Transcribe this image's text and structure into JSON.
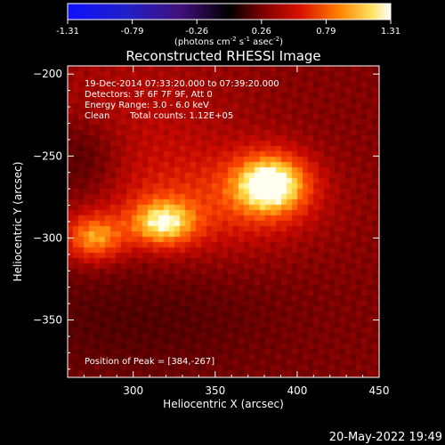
{
  "colorbar": {
    "ticks": [
      "-1.31",
      "-0.79",
      "-0.26",
      "0.26",
      "0.79",
      "1.31"
    ],
    "unit_base": "(photons cm",
    "unit_exp1": "-2",
    "unit_mid1": " s",
    "unit_exp2": "-1",
    "unit_mid2": " asec",
    "unit_exp3": "-2",
    "unit_close": ")"
  },
  "info_lines": [
    "19-Dec-2014 07:33:20.000 to 07:39:20.000",
    "Detectors: 3F 6F 7F 9F, Att 0",
    "Energy Range: 3.0 - 6.0 keV",
    "Clean",
    "Total counts: 1.12E+05"
  ],
  "peak_text": "Position of Peak = [384,-267]",
  "footer_date": "20-May-2022 19:49",
  "chart_data": {
    "type": "heatmap",
    "title": "Reconstructed RHESSI Image",
    "xlabel": "Heliocentric X (arcsec)",
    "ylabel": "Heliocentric Y (arcsec)",
    "xlim": [
      260,
      450
    ],
    "ylim": [
      -385,
      -195
    ],
    "x_ticks": [
      300,
      350,
      400,
      450
    ],
    "y_ticks": [
      -200,
      -250,
      -300,
      -350
    ],
    "x_tick_labels": [
      "300",
      "350",
      "400",
      "450"
    ],
    "y_tick_labels": [
      "−200",
      "−250",
      "−300",
      "−350"
    ],
    "colormap": "hot (black-red-orange-yellow-white)",
    "value_range": [
      -1.31,
      1.31
    ],
    "peak": [
      384,
      -267
    ],
    "sources": [
      {
        "x": 384,
        "y": -267,
        "amplitude": 1.0
      },
      {
        "x": 315,
        "y": -293,
        "amplitude": 0.9
      },
      {
        "x": 276,
        "y": -299,
        "amplitude": 0.8
      }
    ],
    "background": "red diffuse emission with bright ridge connecting sources"
  }
}
